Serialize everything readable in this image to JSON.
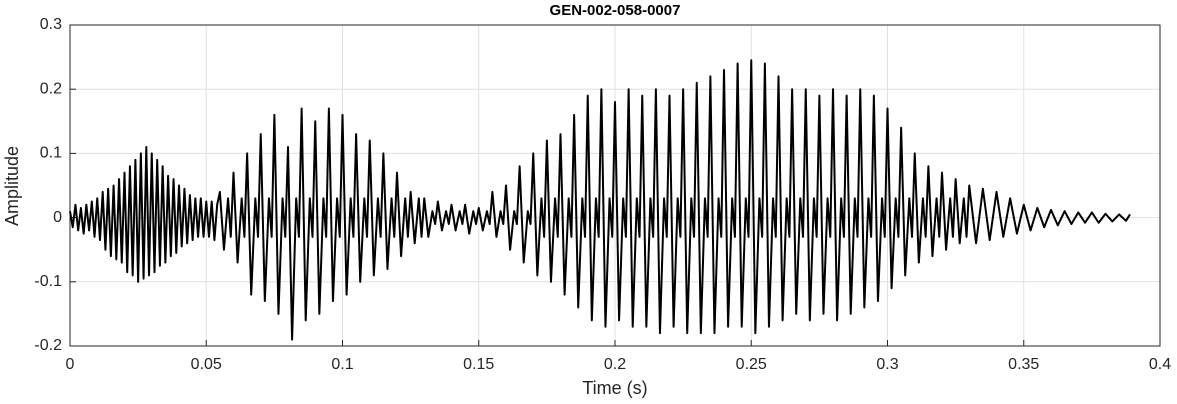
{
  "chart_data": {
    "type": "line",
    "title": "GEN-002-058-0007",
    "xlabel": "Time (s)",
    "ylabel": "Amplitude",
    "xlim": [
      0,
      0.4
    ],
    "ylim": [
      -0.2,
      0.3
    ],
    "xticks": [
      0,
      0.05,
      0.1,
      0.15,
      0.2,
      0.25,
      0.3,
      0.35,
      0.4
    ],
    "yticks": [
      -0.2,
      -0.1,
      0,
      0.1,
      0.2,
      0.3
    ],
    "grid": true,
    "color": "#000000",
    "x": [
      0,
      0.001,
      0.002,
      0.003,
      0.004,
      0.005,
      0.006,
      0.007,
      0.008,
      0.009,
      0.01,
      0.011,
      0.012,
      0.013,
      0.014,
      0.015,
      0.016,
      0.017,
      0.018,
      0.019,
      0.02,
      0.021,
      0.022,
      0.023,
      0.024,
      0.025,
      0.026,
      0.027,
      0.028,
      0.029,
      0.03,
      0.031,
      0.032,
      0.033,
      0.034,
      0.035,
      0.036,
      0.037,
      0.038,
      0.039,
      0.04,
      0.041,
      0.042,
      0.043,
      0.044,
      0.045,
      0.046,
      0.047,
      0.048,
      0.049,
      0.05,
      0.051,
      0.052,
      0.053,
      0.054,
      0.055,
      0.0565,
      0.058,
      0.059,
      0.06,
      0.0615,
      0.063,
      0.064,
      0.065,
      0.0665,
      0.068,
      0.069,
      0.07,
      0.0715,
      0.073,
      0.074,
      0.075,
      0.0765,
      0.078,
      0.079,
      0.08,
      0.0815,
      0.083,
      0.084,
      0.085,
      0.0865,
      0.088,
      0.089,
      0.09,
      0.0915,
      0.093,
      0.094,
      0.095,
      0.0965,
      0.098,
      0.099,
      0.1,
      0.1015,
      0.103,
      0.104,
      0.105,
      0.1065,
      0.108,
      0.109,
      0.11,
      0.1115,
      0.113,
      0.114,
      0.115,
      0.1165,
      0.118,
      0.119,
      0.12,
      0.1215,
      0.123,
      0.124,
      0.125,
      0.1265,
      0.128,
      0.129,
      0.13,
      0.1315,
      0.133,
      0.134,
      0.135,
      0.1365,
      0.138,
      0.139,
      0.14,
      0.1415,
      0.143,
      0.144,
      0.145,
      0.1465,
      0.148,
      0.149,
      0.15,
      0.1515,
      0.153,
      0.154,
      0.155,
      0.1565,
      0.158,
      0.159,
      0.16,
      0.1615,
      0.163,
      0.164,
      0.165,
      0.1665,
      0.168,
      0.169,
      0.17,
      0.1715,
      0.173,
      0.174,
      0.175,
      0.1765,
      0.178,
      0.179,
      0.18,
      0.1815,
      0.183,
      0.184,
      0.185,
      0.1865,
      0.188,
      0.189,
      0.19,
      0.1915,
      0.193,
      0.194,
      0.195,
      0.1965,
      0.198,
      0.199,
      0.2,
      0.2015,
      0.203,
      0.204,
      0.205,
      0.2065,
      0.208,
      0.209,
      0.21,
      0.2115,
      0.213,
      0.214,
      0.215,
      0.2165,
      0.218,
      0.219,
      0.22,
      0.2215,
      0.223,
      0.224,
      0.225,
      0.2265,
      0.228,
      0.229,
      0.23,
      0.2315,
      0.233,
      0.234,
      0.235,
      0.2365,
      0.238,
      0.239,
      0.24,
      0.2415,
      0.243,
      0.244,
      0.245,
      0.2465,
      0.248,
      0.249,
      0.25,
      0.2515,
      0.253,
      0.254,
      0.255,
      0.2565,
      0.258,
      0.259,
      0.26,
      0.2615,
      0.263,
      0.264,
      0.265,
      0.2665,
      0.268,
      0.269,
      0.27,
      0.2715,
      0.273,
      0.274,
      0.275,
      0.2765,
      0.278,
      0.279,
      0.28,
      0.2815,
      0.283,
      0.284,
      0.285,
      0.2865,
      0.288,
      0.289,
      0.29,
      0.2915,
      0.293,
      0.294,
      0.295,
      0.2965,
      0.298,
      0.299,
      0.3,
      0.3015,
      0.303,
      0.304,
      0.305,
      0.3065,
      0.308,
      0.309,
      0.31,
      0.3115,
      0.313,
      0.314,
      0.315,
      0.3165,
      0.318,
      0.319,
      0.32,
      0.3215,
      0.323,
      0.324,
      0.325,
      0.3265,
      0.328,
      0.329,
      0.33,
      0.3325,
      0.335,
      0.3375,
      0.34,
      0.3425,
      0.345,
      0.3475,
      0.35,
      0.3525,
      0.355,
      0.3575,
      0.36,
      0.3625,
      0.365,
      0.3675,
      0.37,
      0.3725,
      0.375,
      0.3775,
      0.38,
      0.3825,
      0.385,
      0.3875,
      0.389
    ],
    "values": [
      0.01,
      -0.015,
      0.02,
      -0.02,
      0.015,
      -0.025,
      0.02,
      -0.02,
      0.025,
      -0.03,
      0.03,
      -0.035,
      0.04,
      -0.05,
      0.045,
      -0.06,
      0.05,
      -0.065,
      0.06,
      -0.07,
      0.07,
      -0.085,
      0.08,
      -0.09,
      0.09,
      -0.1,
      0.1,
      -0.095,
      0.11,
      -0.09,
      0.1,
      -0.085,
      0.09,
      -0.075,
      0.08,
      -0.07,
      0.065,
      -0.06,
      0.06,
      -0.055,
      0.05,
      -0.045,
      0.045,
      -0.04,
      0.035,
      -0.035,
      0.03,
      -0.03,
      0.03,
      -0.03,
      0.025,
      -0.03,
      0.025,
      -0.035,
      0.02,
      0.04,
      -0.05,
      0.03,
      -0.03,
      0.07,
      -0.07,
      0.03,
      -0.03,
      0.1,
      -0.12,
      0.03,
      -0.03,
      0.13,
      -0.13,
      0.03,
      -0.03,
      0.16,
      -0.15,
      0.03,
      -0.03,
      0.11,
      -0.19,
      0.03,
      -0.03,
      0.17,
      -0.16,
      0.03,
      -0.03,
      0.15,
      -0.15,
      0.03,
      -0.03,
      0.17,
      -0.13,
      0.03,
      -0.03,
      0.16,
      -0.12,
      0.03,
      -0.03,
      0.13,
      -0.1,
      0.03,
      -0.03,
      0.12,
      -0.09,
      0.03,
      -0.03,
      0.1,
      -0.08,
      0.03,
      -0.03,
      0.07,
      -0.06,
      0.03,
      -0.03,
      0.04,
      -0.04,
      0.03,
      -0.03,
      0.03,
      -0.03,
      0.01,
      -0.01,
      0.025,
      -0.02,
      0.01,
      -0.01,
      0.02,
      -0.02,
      0.01,
      -0.01,
      0.02,
      -0.025,
      0.01,
      -0.01,
      0.015,
      -0.02,
      0.01,
      -0.01,
      0.04,
      -0.03,
      0.01,
      -0.01,
      0.05,
      -0.05,
      0.01,
      -0.01,
      0.08,
      -0.07,
      0.01,
      -0.01,
      0.1,
      -0.09,
      0.03,
      -0.03,
      0.12,
      -0.1,
      0.03,
      -0.03,
      0.13,
      -0.12,
      0.03,
      -0.03,
      0.16,
      -0.14,
      0.03,
      -0.03,
      0.19,
      -0.16,
      0.03,
      -0.03,
      0.2,
      -0.17,
      0.03,
      -0.03,
      0.18,
      -0.16,
      0.03,
      -0.03,
      0.2,
      -0.17,
      0.03,
      -0.03,
      0.19,
      -0.17,
      0.03,
      -0.03,
      0.2,
      -0.18,
      0.03,
      -0.03,
      0.19,
      -0.17,
      0.03,
      -0.03,
      0.2,
      -0.18,
      0.03,
      -0.03,
      0.21,
      -0.18,
      0.03,
      -0.03,
      0.22,
      -0.18,
      0.03,
      -0.03,
      0.23,
      -0.17,
      0.03,
      -0.03,
      0.24,
      -0.17,
      0.03,
      -0.03,
      0.245,
      -0.18,
      0.03,
      -0.03,
      0.24,
      -0.17,
      0.03,
      -0.03,
      0.22,
      -0.16,
      0.03,
      -0.03,
      0.2,
      -0.15,
      0.03,
      -0.03,
      0.2,
      -0.16,
      0.03,
      -0.03,
      0.19,
      -0.15,
      0.03,
      -0.03,
      0.2,
      -0.16,
      0.03,
      -0.03,
      0.19,
      -0.15,
      0.03,
      -0.03,
      0.2,
      -0.14,
      0.03,
      -0.03,
      0.19,
      -0.13,
      0.03,
      -0.03,
      0.17,
      -0.11,
      0.03,
      -0.03,
      0.14,
      -0.09,
      0.03,
      -0.03,
      0.1,
      -0.07,
      0.03,
      -0.03,
      0.08,
      -0.06,
      0.03,
      -0.03,
      0.07,
      -0.05,
      0.03,
      -0.03,
      0.06,
      -0.04,
      0.03,
      -0.03,
      0.05,
      -0.04,
      0.045,
      -0.035,
      0.04,
      -0.03,
      0.03,
      -0.025,
      0.02,
      -0.02,
      0.015,
      -0.015,
      0.012,
      -0.012,
      0.01,
      -0.01,
      0.008,
      -0.008,
      0.008,
      -0.008,
      0.006,
      -0.006,
      0.005,
      -0.005,
      0.005
    ]
  }
}
